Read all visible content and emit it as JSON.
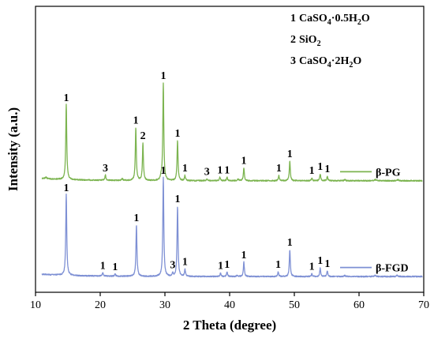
{
  "chart_data": {
    "type": "line",
    "xlabel": "2 Theta (degree)",
    "ylabel": "Intensity (a.u.)",
    "xlim": [
      10,
      70
    ],
    "ylim": [
      0,
      1
    ],
    "xticks": [
      "10",
      "20",
      "30",
      "40",
      "50",
      "60",
      "70"
    ],
    "grid": false,
    "legend_position": "right",
    "phase_key": [
      {
        "num": "1",
        "formula": "CaSO",
        "sub1": "4",
        "mid": "·0.5H",
        "sub2": "2",
        "end": "O"
      },
      {
        "num": "2",
        "formula": "SiO",
        "sub1": "2",
        "mid": "",
        "sub2": "",
        "end": ""
      },
      {
        "num": "3",
        "formula": "CaSO",
        "sub1": "4",
        "mid": "·2H",
        "sub2": "2",
        "end": "O"
      }
    ],
    "series": [
      {
        "name": "β-PG",
        "color": "#7cb450",
        "baseline": 0.39,
        "peaks": [
          {
            "x": 11.6,
            "h": 0.006,
            "w": 0.12
          },
          {
            "x": 14.75,
            "h": 0.265,
            "w": 0.09,
            "label": "1"
          },
          {
            "x": 20.8,
            "h": 0.018,
            "w": 0.09,
            "label": "3"
          },
          {
            "x": 23.4,
            "h": 0.006,
            "w": 0.12
          },
          {
            "x": 25.5,
            "h": 0.185,
            "w": 0.09,
            "label": "1"
          },
          {
            "x": 26.6,
            "h": 0.13,
            "w": 0.09,
            "label": "2"
          },
          {
            "x": 29.4,
            "h": 0.012,
            "w": 0.1
          },
          {
            "x": 29.75,
            "h": 0.34,
            "w": 0.09,
            "label": "1"
          },
          {
            "x": 31.95,
            "h": 0.14,
            "w": 0.09,
            "label": "1"
          },
          {
            "x": 33.1,
            "h": 0.018,
            "w": 0.09,
            "label": "1"
          },
          {
            "x": 36.5,
            "h": 0.006,
            "w": 0.12,
            "label": "3"
          },
          {
            "x": 38.5,
            "h": 0.012,
            "w": 0.09,
            "label": "1"
          },
          {
            "x": 39.6,
            "h": 0.012,
            "w": 0.09,
            "label": "1"
          },
          {
            "x": 41.3,
            "h": 0.006,
            "w": 0.12
          },
          {
            "x": 42.2,
            "h": 0.045,
            "w": 0.09,
            "label": "1"
          },
          {
            "x": 47.6,
            "h": 0.018,
            "w": 0.09,
            "label": "1"
          },
          {
            "x": 49.3,
            "h": 0.068,
            "w": 0.09,
            "label": "1"
          },
          {
            "x": 52.7,
            "h": 0.01,
            "w": 0.09,
            "label": "1"
          },
          {
            "x": 54.0,
            "h": 0.024,
            "w": 0.09,
            "label": "1"
          },
          {
            "x": 55.1,
            "h": 0.016,
            "w": 0.09,
            "label": "1"
          },
          {
            "x": 57.8,
            "h": 0.004,
            "w": 0.12
          },
          {
            "x": 62.5,
            "h": 0.004,
            "w": 0.15
          },
          {
            "x": 66.0,
            "h": 0.004,
            "w": 0.15
          }
        ]
      },
      {
        "name": "β-FGD",
        "color": "#7e90d4",
        "baseline": 0.055,
        "peaks": [
          {
            "x": 14.75,
            "h": 0.285,
            "w": 0.09,
            "label": "1"
          },
          {
            "x": 20.4,
            "h": 0.012,
            "w": 0.09,
            "label": "1"
          },
          {
            "x": 22.3,
            "h": 0.008,
            "w": 0.09,
            "label": "1"
          },
          {
            "x": 25.6,
            "h": 0.18,
            "w": 0.09,
            "label": "1"
          },
          {
            "x": 29.75,
            "h": 0.345,
            "w": 0.09,
            "label": "1"
          },
          {
            "x": 31.2,
            "h": 0.01,
            "w": 0.09,
            "label": "3"
          },
          {
            "x": 31.95,
            "h": 0.245,
            "w": 0.09,
            "label": "1"
          },
          {
            "x": 33.1,
            "h": 0.024,
            "w": 0.09,
            "label": "1"
          },
          {
            "x": 38.6,
            "h": 0.012,
            "w": 0.09,
            "label": "1"
          },
          {
            "x": 39.6,
            "h": 0.016,
            "w": 0.09,
            "label": "1"
          },
          {
            "x": 41.2,
            "h": 0.004,
            "w": 0.12
          },
          {
            "x": 42.2,
            "h": 0.05,
            "w": 0.09,
            "label": "1"
          },
          {
            "x": 47.5,
            "h": 0.016,
            "w": 0.09,
            "label": "1"
          },
          {
            "x": 49.3,
            "h": 0.094,
            "w": 0.09,
            "label": "1"
          },
          {
            "x": 52.7,
            "h": 0.01,
            "w": 0.09,
            "label": "1"
          },
          {
            "x": 54.0,
            "h": 0.03,
            "w": 0.09,
            "label": "1"
          },
          {
            "x": 55.1,
            "h": 0.02,
            "w": 0.09,
            "label": "1"
          },
          {
            "x": 57.8,
            "h": 0.004,
            "w": 0.12
          },
          {
            "x": 62.5,
            "h": 0.004,
            "w": 0.15
          },
          {
            "x": 65.9,
            "h": 0.004,
            "w": 0.15
          }
        ]
      }
    ]
  }
}
